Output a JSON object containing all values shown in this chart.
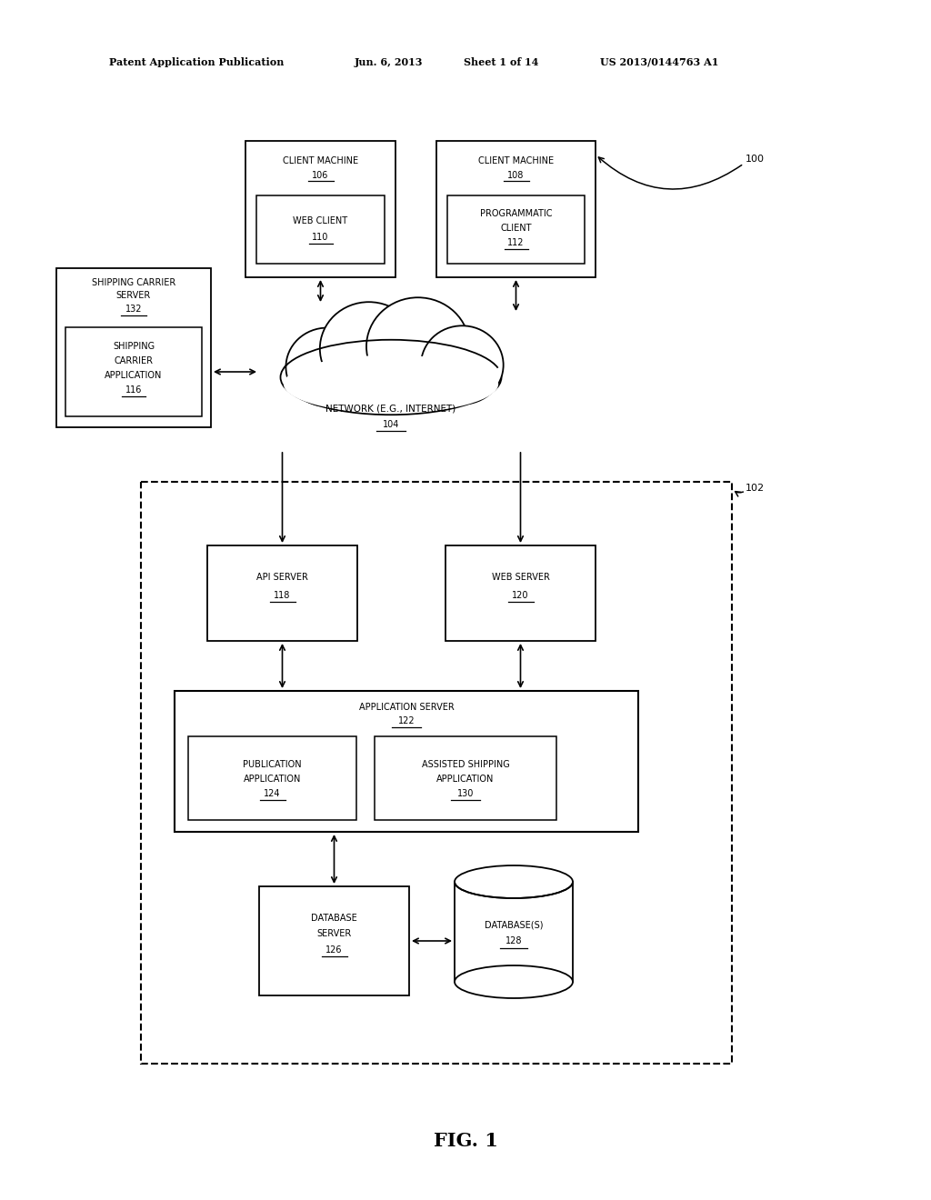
{
  "bg_color": "#ffffff",
  "line_color": "#000000",
  "header_line1": "Patent Application Publication",
  "header_line2": "Jun. 6, 2013",
  "header_line3": "Sheet 1 of 14",
  "header_line4": "US 2013/0144763 A1",
  "fig_label": "FIG. 1",
  "font_size_main": 7.0,
  "font_size_header": 8.0,
  "font_size_fig": 15,
  "fig_width": 10.24,
  "fig_height": 13.2,
  "dpi": 100
}
